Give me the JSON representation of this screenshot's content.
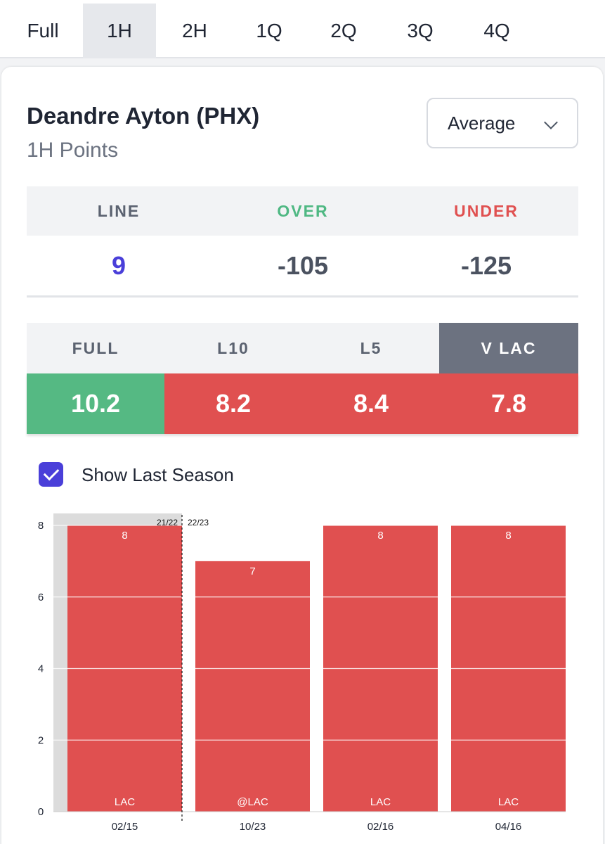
{
  "tabs": [
    "Full",
    "1H",
    "2H",
    "1Q",
    "2Q",
    "3Q",
    "4Q"
  ],
  "active_tab": "1H",
  "player": {
    "name": "Deandre Ayton (PHX)",
    "market": "1H Points"
  },
  "dropdown": {
    "selected": "Average"
  },
  "line_table": {
    "headers": {
      "line": "LINE",
      "over": "OVER",
      "under": "UNDER"
    },
    "values": {
      "line": "9",
      "over": "-105",
      "under": "-125"
    }
  },
  "averages": {
    "headers": [
      "FULL",
      "L10",
      "L5",
      "V LAC"
    ],
    "values": [
      "10.2",
      "8.2",
      "8.4",
      "7.8"
    ],
    "active": "V LAC"
  },
  "show_last_season": {
    "label": "Show Last Season",
    "checked": true
  },
  "colors": {
    "accent": "#4a3fd9",
    "over": "#4fb883",
    "under": "#e05050",
    "green_cell": "#55b983",
    "red_cell": "#e05050",
    "active_tab": "#6c7280"
  },
  "chart_data": {
    "type": "bar",
    "categories": [
      "02/15",
      "10/23",
      "02/16",
      "04/16"
    ],
    "opponents": [
      "LAC",
      "@LAC",
      "LAC",
      "LAC"
    ],
    "values": [
      8,
      7,
      8,
      8
    ],
    "data_labels": [
      "8",
      "7",
      "8",
      "8"
    ],
    "ylim": [
      0,
      8
    ],
    "yticks": [
      0,
      2,
      4,
      6,
      8
    ],
    "season_divider": {
      "before": "21/22",
      "after": "22/23",
      "between_index": 0
    },
    "line": 9
  }
}
